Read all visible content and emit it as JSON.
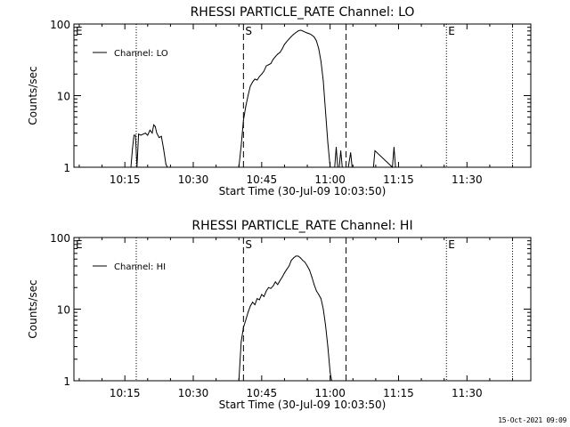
{
  "footer": {
    "timestamp": "15-Oct-2021 09:09"
  },
  "chart_data": [
    {
      "type": "line",
      "title": "RHESSI PARTICLE_RATE Channel: LO",
      "xlabel": "Start Time (30-Jul-09 10:03:50)",
      "ylabel": "Counts/sec",
      "yscale": "log",
      "ylim": [
        1,
        100
      ],
      "xlim": [
        "10:03:50",
        "11:44:00"
      ],
      "xticks": [
        "10:15",
        "10:30",
        "10:45",
        "11:00",
        "11:15",
        "11:30"
      ],
      "yticks": [
        "1",
        "10",
        "100"
      ],
      "legend": {
        "position": "top-left"
      },
      "series": [
        {
          "name": "Channel: LO",
          "x": [
            "10:16:20",
            "10:16:40",
            "10:17:00",
            "10:17:20",
            "10:17:40",
            "10:18:00",
            "10:18:30",
            "10:19:00",
            "10:19:30",
            "10:20:00",
            "10:20:30",
            "10:21:00",
            "10:21:20",
            "10:21:40",
            "10:22:00",
            "10:22:30",
            "10:23:00",
            "10:23:30",
            "10:24:00",
            "10:24:20",
            "10:24:40",
            "10:40:00",
            "10:40:30",
            "10:41:00",
            "10:41:30",
            "10:42:00",
            "10:42:30",
            "10:43:00",
            "10:43:30",
            "10:44:00",
            "10:44:30",
            "10:45:00",
            "10:45:30",
            "10:46:00",
            "10:46:30",
            "10:47:00",
            "10:47:30",
            "10:48:00",
            "10:48:30",
            "10:49:00",
            "10:49:30",
            "10:50:00",
            "10:50:30",
            "10:51:00",
            "10:51:30",
            "10:52:00",
            "10:52:30",
            "10:53:00",
            "10:53:30",
            "10:54:00",
            "10:54:30",
            "10:55:00",
            "10:55:30",
            "10:56:00",
            "10:56:30",
            "10:57:00",
            "10:57:30",
            "10:58:00",
            "10:58:30",
            "10:59:00",
            "10:59:30",
            "11:00:00",
            "11:00:30",
            "11:01:00",
            "11:01:20",
            "11:01:40",
            "11:02:00",
            "11:02:20",
            "11:02:40",
            "11:03:00",
            "11:04:00",
            "11:04:30",
            "11:04:50",
            "11:09:30",
            "11:09:50",
            "11:13:40",
            "11:14:00",
            "11:14:20"
          ],
          "y": [
            1.0,
            1.8,
            2.8,
            2.8,
            1.0,
            2.9,
            2.8,
            2.9,
            3.0,
            2.8,
            3.3,
            3.0,
            3.9,
            3.7,
            3.0,
            2.6,
            2.7,
            1.8,
            1.1,
            1.0,
            1.0,
            1.0,
            2.0,
            4.5,
            7.0,
            10.0,
            13.5,
            15.5,
            17.0,
            16.5,
            18.5,
            20.0,
            22.0,
            26.0,
            27.0,
            28.0,
            32.0,
            35.0,
            38.0,
            40.0,
            45.0,
            52.0,
            57.0,
            62.0,
            67.0,
            72.0,
            76.0,
            80.0,
            82.0,
            80.0,
            77.0,
            75.0,
            73.0,
            70.0,
            66.0,
            58.0,
            45.0,
            30.0,
            16.0,
            6.0,
            2.2,
            1.0,
            1.0,
            1.0,
            1.9,
            1.0,
            1.0,
            1.7,
            1.0,
            1.0,
            1.0,
            1.6,
            1.0,
            1.0,
            1.7,
            1.0,
            1.9,
            1.0
          ]
        }
      ],
      "annotations": [
        {
          "label": "E",
          "x": "10:03:50",
          "style": "dotted"
        },
        {
          "label": "",
          "x": "10:17:30",
          "style": "dotted"
        },
        {
          "label": "S",
          "x": "10:41:00",
          "style": "dashed"
        },
        {
          "label": "",
          "x": "11:03:30",
          "style": "dashed"
        },
        {
          "label": "E",
          "x": "11:25:30",
          "style": "dotted"
        },
        {
          "label": "",
          "x": "11:40:00",
          "style": "dotted"
        }
      ]
    },
    {
      "type": "line",
      "title": "RHESSI PARTICLE_RATE Channel: HI",
      "xlabel": "Start Time (30-Jul-09 10:03:50)",
      "ylabel": "Counts/sec",
      "yscale": "log",
      "ylim": [
        1,
        100
      ],
      "xlim": [
        "10:03:50",
        "11:44:00"
      ],
      "xticks": [
        "10:15",
        "10:30",
        "10:45",
        "11:00",
        "11:15",
        "11:30"
      ],
      "yticks": [
        "1",
        "10",
        "100"
      ],
      "legend": {
        "position": "top-left"
      },
      "series": [
        {
          "name": "Channel: HI",
          "x": [
            "10:40:00",
            "10:40:30",
            "10:41:00",
            "10:41:30",
            "10:42:00",
            "10:42:30",
            "10:43:00",
            "10:43:30",
            "10:44:00",
            "10:44:30",
            "10:45:00",
            "10:45:30",
            "10:46:00",
            "10:46:30",
            "10:47:00",
            "10:47:30",
            "10:48:00",
            "10:48:30",
            "10:49:00",
            "10:49:30",
            "10:50:00",
            "10:50:30",
            "10:51:00",
            "10:51:30",
            "10:52:00",
            "10:52:30",
            "10:53:00",
            "10:53:30",
            "10:54:00",
            "10:54:30",
            "10:55:00",
            "10:55:30",
            "10:56:00",
            "10:56:30",
            "10:57:00",
            "10:57:30",
            "10:58:00",
            "10:58:30",
            "10:59:00",
            "10:59:30",
            "11:00:00",
            "11:00:20"
          ],
          "y": [
            1.0,
            3.5,
            5.5,
            7.0,
            9.0,
            11.0,
            12.5,
            11.5,
            14.0,
            13.5,
            16.0,
            15.0,
            18.0,
            20.0,
            19.5,
            21.0,
            24.0,
            22.0,
            25.0,
            28.0,
            32.0,
            36.0,
            40.0,
            48.0,
            52.0,
            55.0,
            55.0,
            52.0,
            48.0,
            45.0,
            40.0,
            35.0,
            28.0,
            22.0,
            18.0,
            16.0,
            14.0,
            10.0,
            6.0,
            3.0,
            1.3,
            1.0
          ]
        }
      ],
      "annotations": [
        {
          "label": "E",
          "x": "10:03:50",
          "style": "dotted"
        },
        {
          "label": "",
          "x": "10:17:30",
          "style": "dotted"
        },
        {
          "label": "S",
          "x": "10:41:00",
          "style": "dashed"
        },
        {
          "label": "",
          "x": "11:03:30",
          "style": "dashed"
        },
        {
          "label": "E",
          "x": "11:25:30",
          "style": "dotted"
        },
        {
          "label": "",
          "x": "11:40:00",
          "style": "dotted"
        }
      ]
    }
  ]
}
